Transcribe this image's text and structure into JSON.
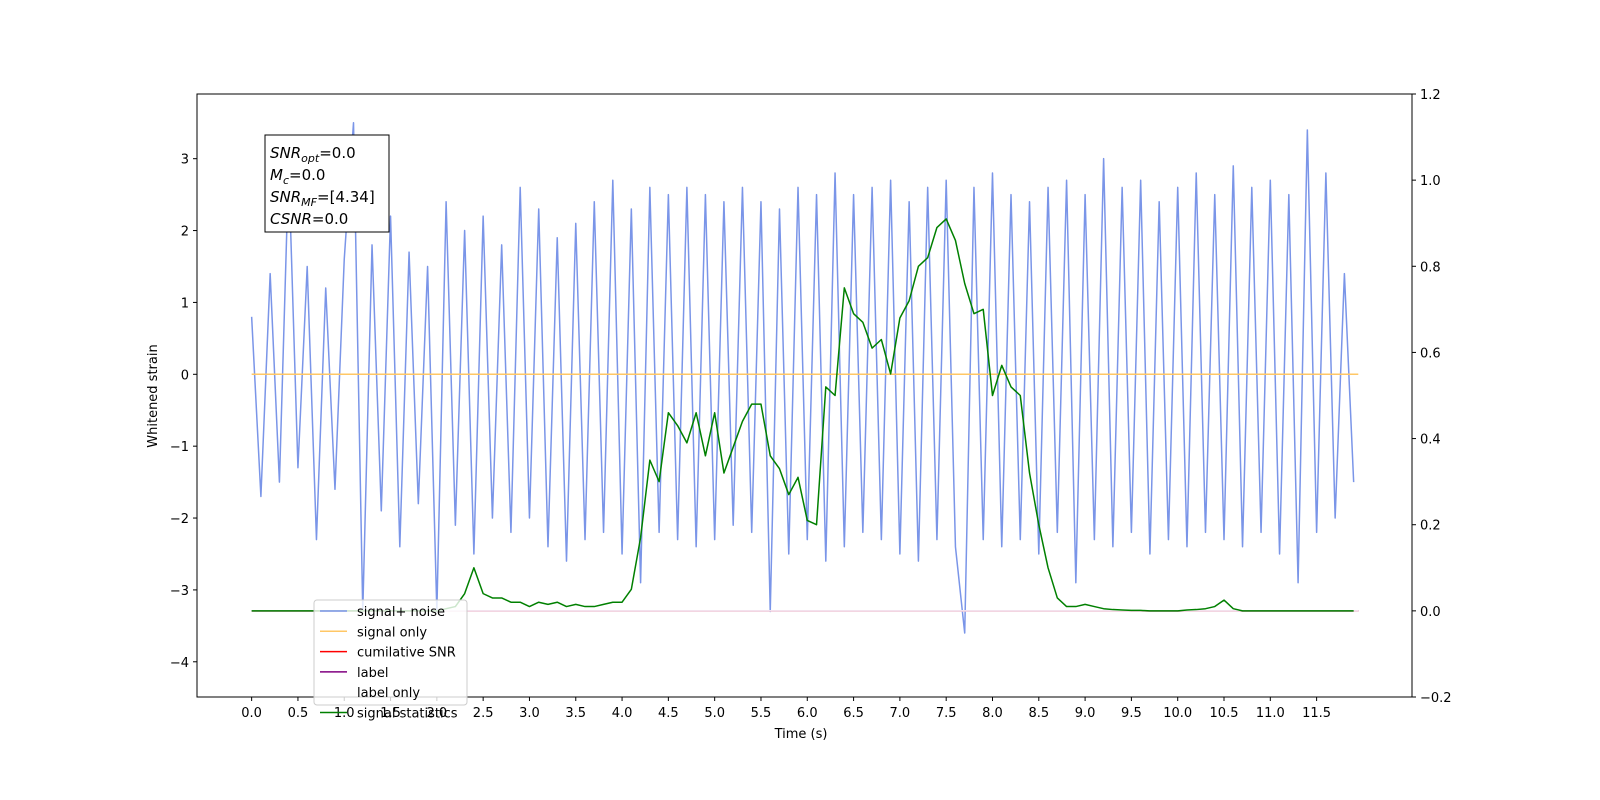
{
  "chart_data": {
    "type": "line",
    "xlabel": "Time (s)",
    "ylabel": "Whitened strain",
    "xlim": [
      -0.59,
      12.53
    ],
    "ylim": [
      -4.49,
      3.9
    ],
    "y2lim": [
      -0.2,
      1.2
    ],
    "xticks": [
      {
        "value": 0,
        "label": "0.0"
      },
      0.5,
      {
        "value": 1,
        "label": "1.0"
      },
      1.5,
      {
        "value": 2,
        "label": "2.0"
      },
      2.5,
      {
        "value": 3,
        "label": "3.0"
      },
      3.5,
      {
        "value": 4,
        "label": "4.0"
      },
      4.5,
      {
        "value": 5,
        "label": "5.0"
      },
      5.5,
      {
        "value": 6,
        "label": "6.0"
      },
      6.5,
      {
        "value": 7,
        "label": "7.0"
      },
      7.5,
      {
        "value": 8,
        "label": "8.0"
      },
      8.5,
      {
        "value": 9,
        "label": "9.0"
      },
      9.5,
      {
        "value": 10,
        "label": "10.0"
      },
      10.5,
      {
        "value": 11,
        "label": "11.0"
      },
      11.5
    ],
    "yticks": [
      {
        "value": -4,
        "label": "−4"
      },
      {
        "value": -3,
        "label": "−3"
      },
      {
        "value": -2,
        "label": "−2"
      },
      {
        "value": -1,
        "label": "−1"
      },
      0,
      1,
      2,
      3
    ],
    "y2ticks": [
      {
        "value": -0.2,
        "label": "−0.2"
      },
      {
        "value": 0,
        "label": "0.0"
      },
      0.2,
      0.4,
      0.6,
      0.8,
      {
        "value": 1,
        "label": "1.0"
      },
      1.2
    ],
    "annotation": [
      {
        "main": "SNR",
        "sub": "opt",
        "rest": "=0.0"
      },
      {
        "main": "M",
        "sub": "c",
        "rest": "=0.0"
      },
      {
        "main": "SNR",
        "sub": "MF",
        "rest": "=[4.34]"
      },
      {
        "main": "CSNR",
        "sub": "",
        "rest": "=0.0"
      }
    ],
    "series": [
      {
        "name": "signal+ noise",
        "color": "#7a95e8",
        "x": [
          0,
          0.1,
          0.2,
          0.3,
          0.4,
          0.5,
          0.6,
          0.7,
          0.8,
          0.9,
          1,
          1.1,
          1.2,
          1.3,
          1.4,
          1.5,
          1.6,
          1.7,
          1.8,
          1.9,
          2,
          2.1,
          2.2,
          2.3,
          2.4,
          2.5,
          2.6,
          2.7,
          2.8,
          2.9,
          3,
          3.1,
          3.2,
          3.3,
          3.4,
          3.5,
          3.6,
          3.7,
          3.8,
          3.9,
          4,
          4.1,
          4.2,
          4.3,
          4.4,
          4.5,
          4.6,
          4.7,
          4.8,
          4.9,
          5,
          5.1,
          5.2,
          5.3,
          5.4,
          5.5,
          5.6,
          5.7,
          5.8,
          5.9,
          6,
          6.1,
          6.2,
          6.3,
          6.4,
          6.5,
          6.6,
          6.7,
          6.8,
          6.9,
          7,
          7.1,
          7.2,
          7.3,
          7.4,
          7.5,
          7.6,
          7.7,
          7.8,
          7.9,
          8,
          8.1,
          8.2,
          8.3,
          8.4,
          8.5,
          8.6,
          8.7,
          8.8,
          8.9,
          9,
          9.1,
          9.2,
          9.3,
          9.4,
          9.5,
          9.6,
          9.7,
          9.8,
          9.9,
          10,
          10.1,
          10.2,
          10.3,
          10.4,
          10.5,
          10.6,
          10.7,
          10.8,
          10.9,
          11,
          11.1,
          11.2,
          11.3,
          11.4,
          11.5,
          11.6,
          11.7,
          11.8,
          11.9
        ],
        "values": [
          0.8,
          -1.7,
          1.4,
          -1.5,
          2.9,
          -1.3,
          1.5,
          -2.3,
          1.2,
          -1.6,
          1.6,
          3.5,
          -3.3,
          1.8,
          -1.9,
          2.2,
          -2.4,
          1.7,
          -1.8,
          1.5,
          -3.3,
          2.4,
          -2.1,
          2.0,
          -2.5,
          2.2,
          -2.0,
          1.8,
          -2.2,
          2.6,
          -2.0,
          2.3,
          -2.4,
          1.9,
          -2.6,
          2.1,
          -2.3,
          2.4,
          -2.2,
          2.7,
          -2.5,
          2.3,
          -2.9,
          2.6,
          -2.2,
          2.5,
          -2.3,
          2.6,
          -2.4,
          2.5,
          -2.3,
          2.4,
          -2.1,
          2.6,
          -2.2,
          2.4,
          -3.3,
          2.3,
          -2.5,
          2.6,
          -2.3,
          2.5,
          -2.6,
          2.8,
          -2.4,
          2.5,
          -2.2,
          2.6,
          -2.3,
          2.7,
          -2.5,
          2.4,
          -2.6,
          2.6,
          -2.3,
          2.7,
          -2.4,
          -3.6,
          2.6,
          -2.3,
          2.8,
          -2.4,
          2.5,
          -2.3,
          2.4,
          -2.5,
          2.6,
          -2.2,
          2.7,
          -2.9,
          2.5,
          -2.3,
          3.0,
          -2.4,
          2.6,
          -2.2,
          2.7,
          -2.5,
          2.4,
          -2.3,
          2.6,
          -2.4,
          2.8,
          -2.2,
          2.5,
          -2.3,
          2.9,
          -2.4,
          2.6,
          -2.2,
          2.7,
          -2.5,
          2.5,
          -2.9,
          3.4,
          -2.2,
          2.8,
          -2.0,
          1.4,
          -1.5
        ]
      },
      {
        "name": "signal only",
        "color": "#ffc766",
        "x": [
          0,
          11.95
        ],
        "values": [
          0,
          0
        ]
      },
      {
        "name": "cumilative SNR",
        "color": "#ff0000",
        "axis": "y2",
        "x": [
          0,
          11.95
        ],
        "values": [
          0,
          0
        ]
      },
      {
        "name": "label",
        "color": "#800080",
        "axis": "y2",
        "x": [
          0,
          11.95
        ],
        "values": [
          0,
          0
        ]
      },
      {
        "name": "label only",
        "color": "#ffffff",
        "axis": "y2",
        "x": [
          0,
          11.95
        ],
        "values": [
          0,
          0
        ]
      },
      {
        "name": "signal statistics",
        "color": "#008000",
        "axis": "y2",
        "x": [
          0,
          0.1,
          0.2,
          0.3,
          0.4,
          0.5,
          0.6,
          0.7,
          0.8,
          0.9,
          1,
          1.1,
          1.2,
          1.3,
          1.4,
          1.5,
          1.6,
          1.7,
          1.8,
          1.9,
          2,
          2.1,
          2.2,
          2.3,
          2.4,
          2.5,
          2.6,
          2.7,
          2.8,
          2.9,
          3,
          3.1,
          3.2,
          3.3,
          3.4,
          3.5,
          3.6,
          3.7,
          3.8,
          3.9,
          4,
          4.1,
          4.2,
          4.3,
          4.4,
          4.5,
          4.6,
          4.7,
          4.8,
          4.9,
          5,
          5.1,
          5.2,
          5.3,
          5.4,
          5.5,
          5.6,
          5.7,
          5.8,
          5.9,
          6,
          6.1,
          6.2,
          6.3,
          6.4,
          6.5,
          6.6,
          6.7,
          6.8,
          6.9,
          7,
          7.1,
          7.2,
          7.3,
          7.4,
          7.5,
          7.6,
          7.7,
          7.8,
          7.9,
          8,
          8.1,
          8.2,
          8.3,
          8.4,
          8.5,
          8.6,
          8.7,
          8.8,
          8.9,
          9,
          9.1,
          9.2,
          9.3,
          9.4,
          9.5,
          9.6,
          9.7,
          9.8,
          9.9,
          10,
          10.1,
          10.2,
          10.3,
          10.4,
          10.5,
          10.6,
          10.7,
          10.8,
          10.9,
          11,
          11.1,
          11.2,
          11.3,
          11.4,
          11.5,
          11.6,
          11.7,
          11.8,
          11.9
        ],
        "values": [
          0,
          0,
          0,
          0,
          0,
          0,
          0,
          0,
          0,
          0,
          0,
          0,
          0,
          0,
          0,
          0,
          0,
          0,
          0,
          0,
          0,
          0.005,
          0.01,
          0.04,
          0.1,
          0.04,
          0.03,
          0.03,
          0.02,
          0.02,
          0.01,
          0.02,
          0.015,
          0.02,
          0.01,
          0.015,
          0.01,
          0.01,
          0.015,
          0.02,
          0.02,
          0.05,
          0.17,
          0.35,
          0.3,
          0.46,
          0.43,
          0.39,
          0.46,
          0.36,
          0.46,
          0.32,
          0.38,
          0.44,
          0.48,
          0.48,
          0.36,
          0.33,
          0.27,
          0.31,
          0.21,
          0.2,
          0.52,
          0.5,
          0.75,
          0.69,
          0.67,
          0.61,
          0.63,
          0.55,
          0.68,
          0.72,
          0.8,
          0.82,
          0.89,
          0.91,
          0.86,
          0.76,
          0.69,
          0.7,
          0.5,
          0.57,
          0.52,
          0.5,
          0.32,
          0.2,
          0.1,
          0.03,
          0.01,
          0.01,
          0.015,
          0.01,
          0.005,
          0.003,
          0.002,
          0.001,
          0.001,
          0,
          0,
          0,
          0,
          0.002,
          0.003,
          0.005,
          0.01,
          0.025,
          0.005,
          0,
          0,
          0,
          0,
          0,
          0,
          0,
          0,
          0,
          0,
          0,
          0,
          0
        ]
      }
    ]
  }
}
